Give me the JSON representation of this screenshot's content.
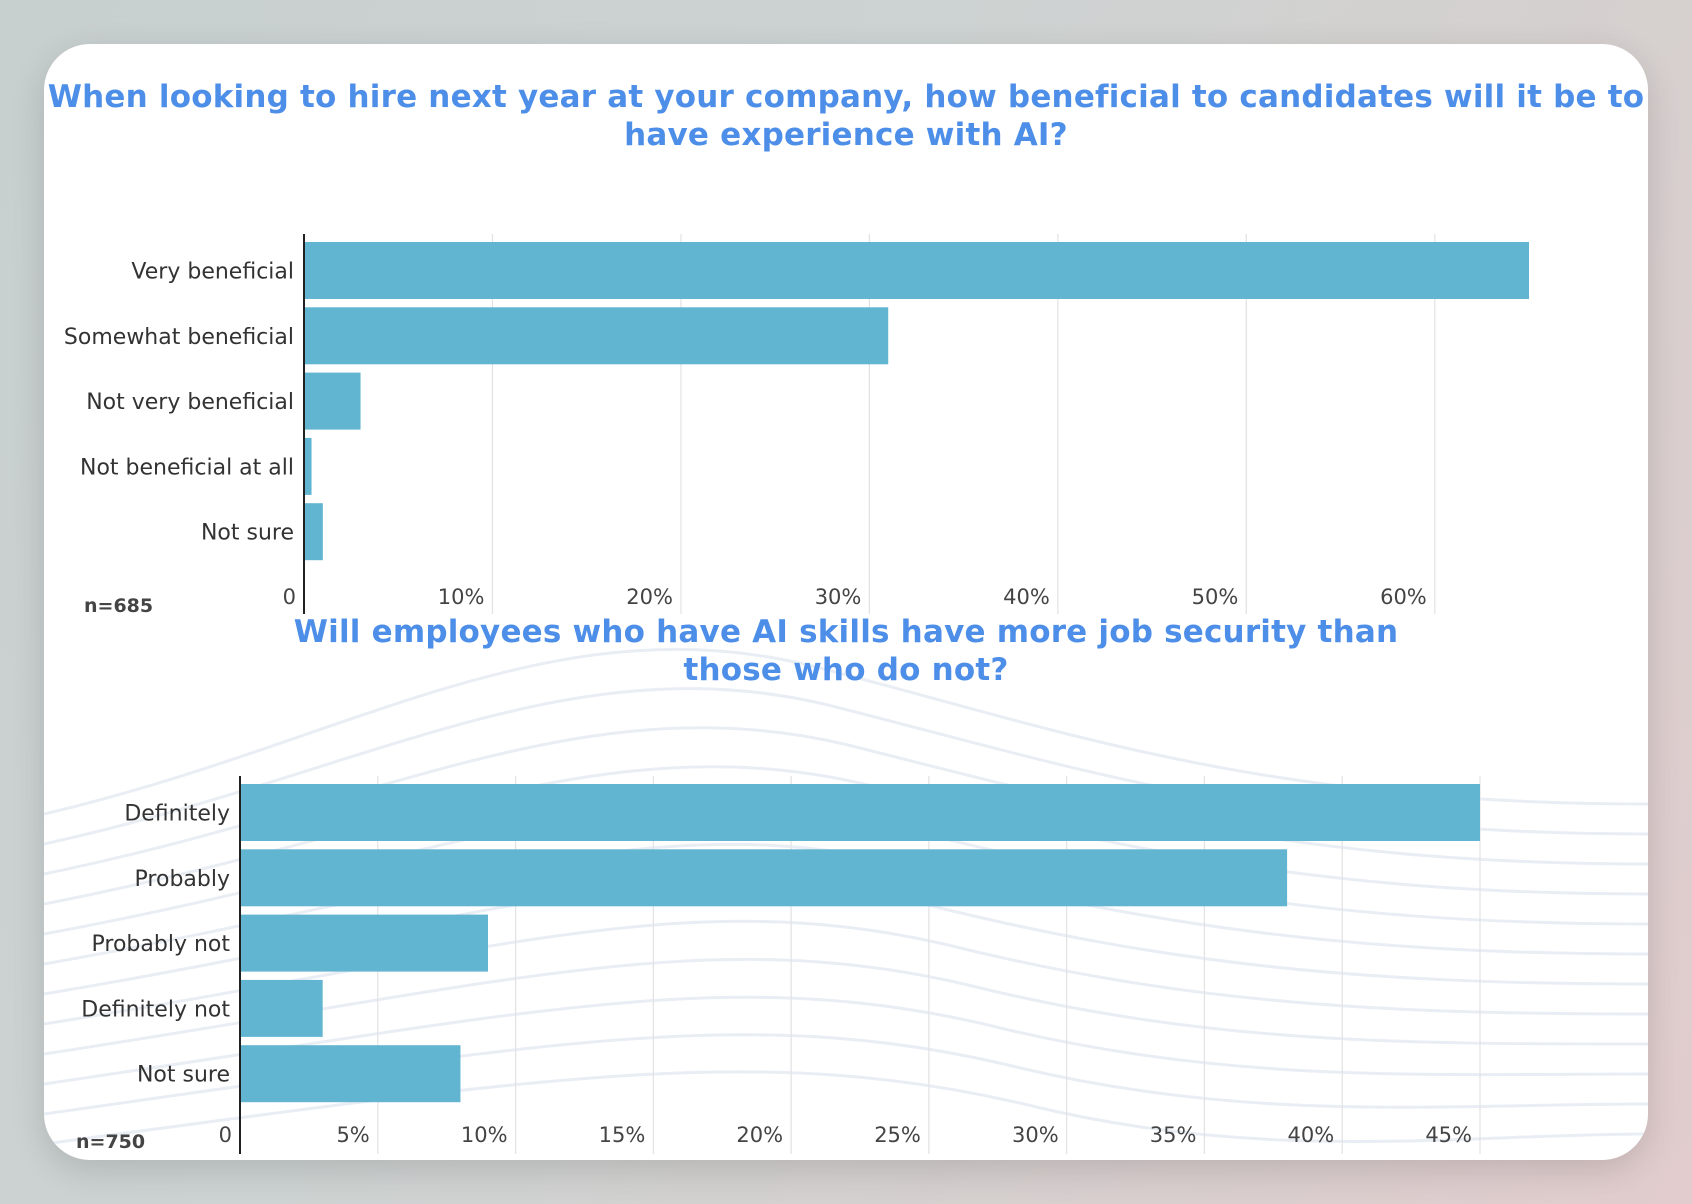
{
  "colors": {
    "bar": "#62b5d1",
    "title": "#4d8ee8",
    "grid": "#e2e2e2",
    "axis": "#222222",
    "label": "#333333"
  },
  "chart_data": [
    {
      "type": "bar",
      "orientation": "horizontal",
      "title": "When looking to hire next year at your company, how beneficial to candidates will it be to have experience with AI?",
      "categories": [
        "Very beneficial",
        "Somewhat beneficial",
        "Not very beneficial",
        "Not beneficial at all",
        "Not sure"
      ],
      "values": [
        65,
        31,
        3,
        0.4,
        1
      ],
      "xlim": [
        0,
        65
      ],
      "ticks": [
        0,
        10,
        20,
        30,
        40,
        50,
        60
      ],
      "tick_labels": [
        "0",
        "10%",
        "20%",
        "30%",
        "40%",
        "50%",
        "60%"
      ],
      "note": "n=685",
      "grid": true
    },
    {
      "type": "bar",
      "orientation": "horizontal",
      "title": "Will employees who have AI skills have more job security than those who do not?",
      "categories": [
        "Definitely",
        "Probably",
        "Probably not",
        "Definitely not",
        "Not sure"
      ],
      "values": [
        45,
        38,
        9,
        3,
        8
      ],
      "xlim": [
        0,
        45
      ],
      "ticks": [
        0,
        5,
        10,
        15,
        20,
        25,
        30,
        35,
        40,
        45
      ],
      "tick_labels": [
        "0",
        "5%",
        "10%",
        "15%",
        "20%",
        "25%",
        "30%",
        "35%",
        "40%",
        "45%"
      ],
      "note": "n=750",
      "grid": true
    }
  ]
}
